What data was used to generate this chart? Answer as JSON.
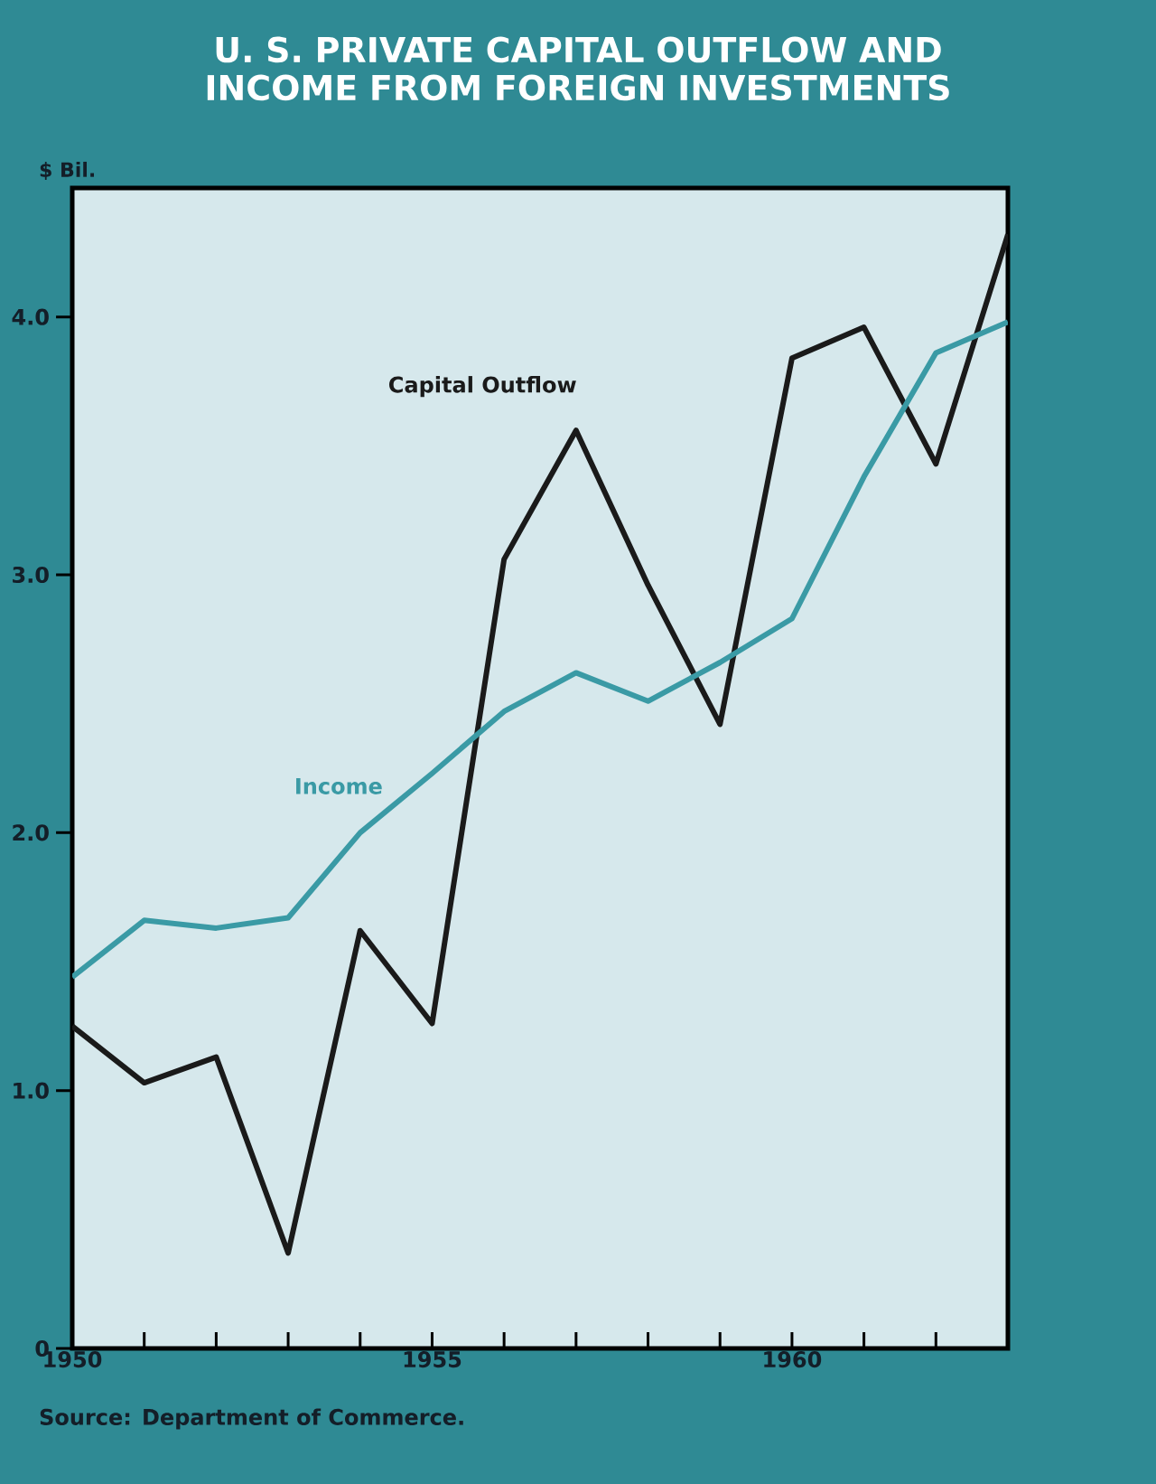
{
  "chart_data": {
    "type": "line",
    "title": "U. S. PRIVATE CAPITAL OUTFLOW AND INCOME FROM FOREIGN INVESTMENTS",
    "ylabel": "$ Bil.",
    "x": [
      1950,
      1951,
      1952,
      1953,
      1954,
      1955,
      1956,
      1957,
      1958,
      1959,
      1960,
      1961,
      1962,
      1963
    ],
    "series": [
      {
        "name": "Capital Outflow",
        "color": "#1a1a1a",
        "values": [
          1.25,
          1.03,
          1.13,
          0.37,
          1.62,
          1.26,
          3.06,
          3.56,
          2.96,
          2.42,
          3.84,
          3.96,
          3.43,
          4.32
        ]
      },
      {
        "name": "Income",
        "color": "#3a9aa5",
        "values": [
          1.44,
          1.66,
          1.63,
          1.67,
          2.0,
          2.23,
          2.47,
          2.62,
          2.51,
          2.66,
          2.83,
          3.38,
          3.86,
          3.98
        ]
      }
    ],
    "xlim": [
      1950,
      1963
    ],
    "ylim": [
      0,
      4.5
    ],
    "xticks": [
      1950,
      {
        "value": 1951,
        "label": null
      },
      {
        "value": 1952,
        "label": null
      },
      {
        "value": 1953,
        "label": null
      },
      {
        "value": 1954,
        "label": null
      },
      1955,
      {
        "value": 1956,
        "label": null
      },
      {
        "value": 1957,
        "label": null
      },
      {
        "value": 1958,
        "label": null
      },
      {
        "value": 1959,
        "label": null
      },
      1960,
      {
        "value": 1961,
        "label": null
      },
      {
        "value": 1962,
        "label": null
      },
      {
        "value": 1963,
        "label": null
      }
    ],
    "yticks": [
      0,
      {
        "value": 1,
        "label": "1.0"
      },
      {
        "value": 2,
        "label": "2.0"
      },
      {
        "value": 3,
        "label": "3.0"
      },
      {
        "value": 4,
        "label": "4.0"
      }
    ],
    "annotations": [
      "Source:  Department of Commerce."
    ],
    "grid": false,
    "legend": false,
    "marker": "none",
    "line_style": "solid"
  }
}
